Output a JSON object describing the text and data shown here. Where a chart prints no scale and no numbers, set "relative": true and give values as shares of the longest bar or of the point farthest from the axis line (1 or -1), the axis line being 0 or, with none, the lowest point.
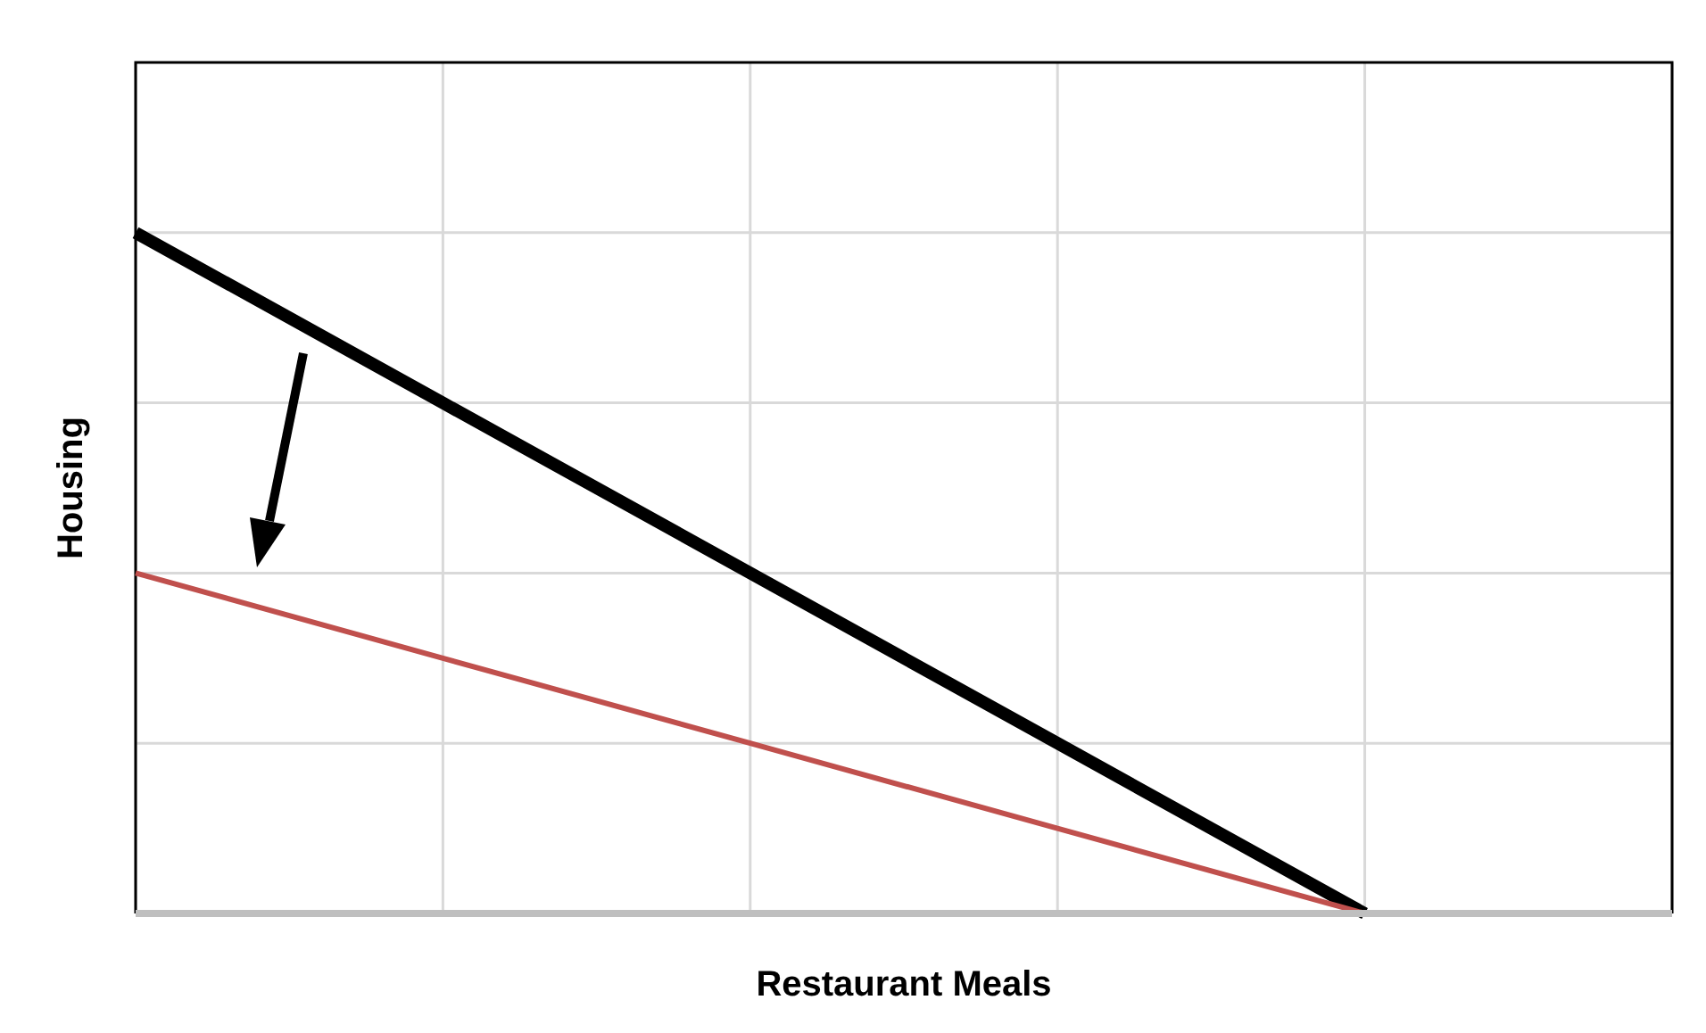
{
  "chart_data": {
    "type": "line",
    "relative": true,
    "xlabel": "Restaurant Meals",
    "ylabel": "Housing",
    "grid": true,
    "categories": [
      null,
      null,
      null,
      null,
      null,
      null
    ],
    "series": [
      {
        "color": "#000000",
        "values": [
          1,
          0.75,
          0.5,
          0.25,
          0,
          null
        ]
      },
      {
        "color": "#c0504d",
        "values": [
          0.5,
          0.375,
          0.25,
          0.125,
          0,
          null
        ]
      }
    ]
  }
}
